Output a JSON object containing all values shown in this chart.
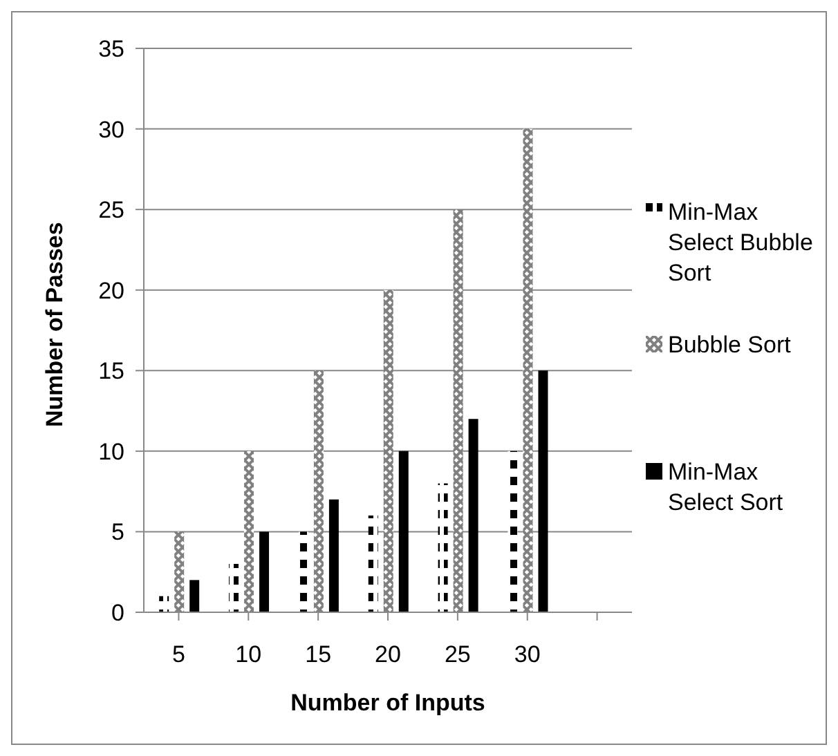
{
  "chart_data": {
    "type": "bar",
    "xlabel": "Number of Inputs",
    "ylabel": "Number of Passes",
    "categories": [
      "5",
      "10",
      "15",
      "20",
      "25",
      "30",
      null
    ],
    "series": [
      {
        "name": "Min-Max Select Bubble Sort",
        "color": "#000000",
        "values": [
          1,
          3,
          5,
          6,
          8,
          10,
          null
        ]
      },
      {
        "name": "Bubble Sort",
        "color": "#808080",
        "values": [
          5,
          10,
          15,
          20,
          25,
          30,
          null
        ]
      },
      {
        "name": "Min-Max Select Sort",
        "color": "#000000",
        "values": [
          2,
          5,
          7,
          10,
          12,
          15,
          null
        ]
      }
    ],
    "ylim": [
      0,
      35
    ],
    "yticks": [
      0,
      5,
      10,
      15,
      20,
      25,
      30,
      35
    ],
    "grid": "y",
    "legend": "right"
  }
}
